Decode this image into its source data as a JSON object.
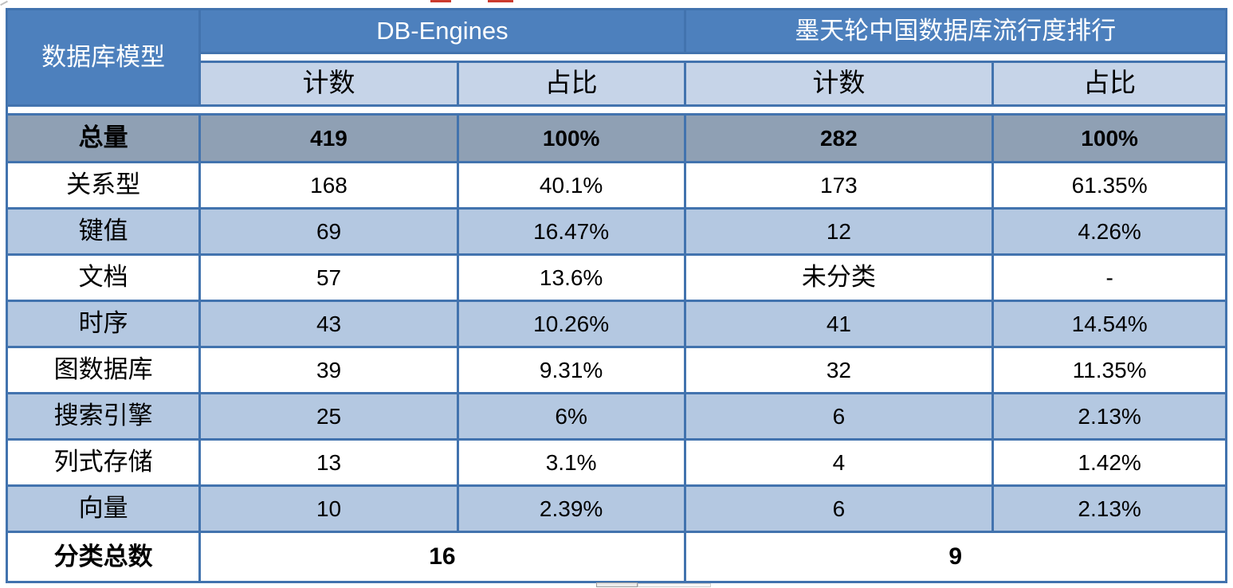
{
  "table": {
    "corner_header": "数据库模型",
    "group_headers": [
      {
        "label": "DB-Engines"
      },
      {
        "label": "墨天轮中国数据库流行度排行"
      }
    ],
    "sub_headers": [
      "计数",
      "占比",
      "计数",
      "占比"
    ],
    "total_row": {
      "label": "总量",
      "values": [
        "419",
        "100%",
        "282",
        "100%"
      ]
    },
    "rows": [
      {
        "label": "关系型",
        "values": [
          "168",
          "40.1%",
          "173",
          "61.35%"
        ]
      },
      {
        "label": "键值",
        "values": [
          "69",
          "16.47%",
          "12",
          "4.26%"
        ]
      },
      {
        "label": "文档",
        "values": [
          "57",
          "13.6%",
          "未分类",
          "-"
        ]
      },
      {
        "label": "时序",
        "values": [
          "43",
          "10.26%",
          "41",
          "14.54%"
        ]
      },
      {
        "label": "图数据库",
        "values": [
          "39",
          "9.31%",
          "32",
          "11.35%"
        ]
      },
      {
        "label": "搜索引擎",
        "values": [
          "25",
          "6%",
          "6",
          "2.13%"
        ]
      },
      {
        "label": "列式存储",
        "values": [
          "13",
          "3.1%",
          "4",
          "1.42%"
        ]
      },
      {
        "label": "向量",
        "values": [
          "10",
          "2.39%",
          "6",
          "2.13%"
        ]
      }
    ],
    "summary_row": {
      "label": "分类总数",
      "values": [
        "16",
        "9"
      ]
    }
  },
  "colors": {
    "header_blue": "#4d80bd",
    "subheader_blue": "#c6d4e8",
    "total_row_gray": "#8fa0b4",
    "alt_row_blue": "#b4c8e1",
    "grid_border_blue": "#4273ae",
    "text_black": "#000000",
    "header_text_white": "#ffffff",
    "artifact_red": "#cc3b2e"
  },
  "chart_data": {
    "type": "table",
    "title": "数据库模型分类对比：DB-Engines vs 墨天轮中国数据库流行度排行",
    "column_groups": [
      "DB-Engines",
      "墨天轮中国数据库流行度排行"
    ],
    "columns": [
      "数据库模型",
      "DB-Engines 计数",
      "DB-Engines 占比",
      "墨天轮 计数",
      "墨天轮 占比"
    ],
    "rows": [
      [
        "总量",
        "419",
        "100%",
        "282",
        "100%"
      ],
      [
        "关系型",
        "168",
        "40.1%",
        "173",
        "61.35%"
      ],
      [
        "键值",
        "69",
        "16.47%",
        "12",
        "4.26%"
      ],
      [
        "文档",
        "57",
        "13.6%",
        "未分类",
        "-"
      ],
      [
        "时序",
        "43",
        "10.26%",
        "41",
        "14.54%"
      ],
      [
        "图数据库",
        "39",
        "9.31%",
        "32",
        "11.35%"
      ],
      [
        "搜索引擎",
        "25",
        "6%",
        "6",
        "2.13%"
      ],
      [
        "列式存储",
        "13",
        "3.1%",
        "4",
        "1.42%"
      ],
      [
        "向量",
        "10",
        "2.39%",
        "6",
        "2.13%"
      ],
      [
        "分类总数",
        "16",
        "",
        "9",
        ""
      ]
    ]
  }
}
